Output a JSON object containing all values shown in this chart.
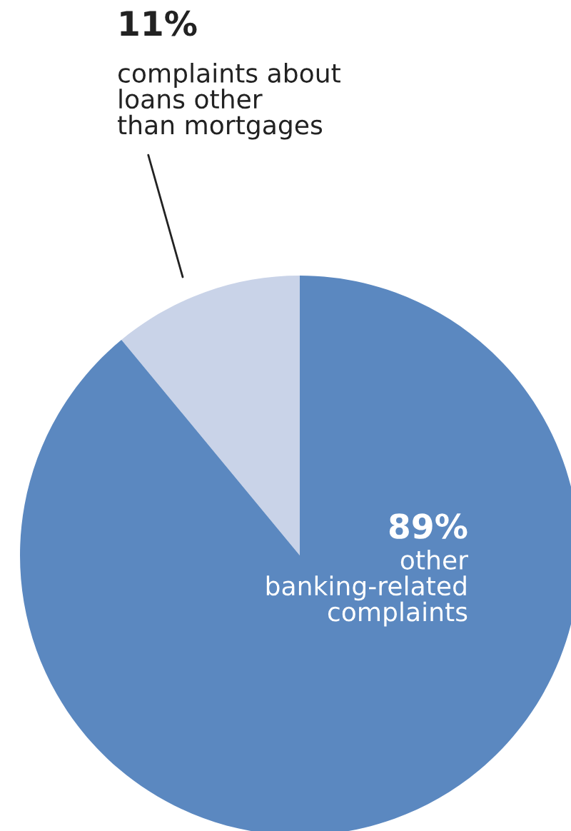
{
  "chart_data": {
    "type": "pie",
    "categories": [
      "complaints about\nloans other\nthan mortgages",
      "other\nbanking-related\ncomplaints"
    ],
    "values": [
      11,
      89
    ],
    "colors": [
      "#c9d3e8",
      "#5b88c0"
    ],
    "value_labels": [
      "11%",
      "89%"
    ]
  }
}
